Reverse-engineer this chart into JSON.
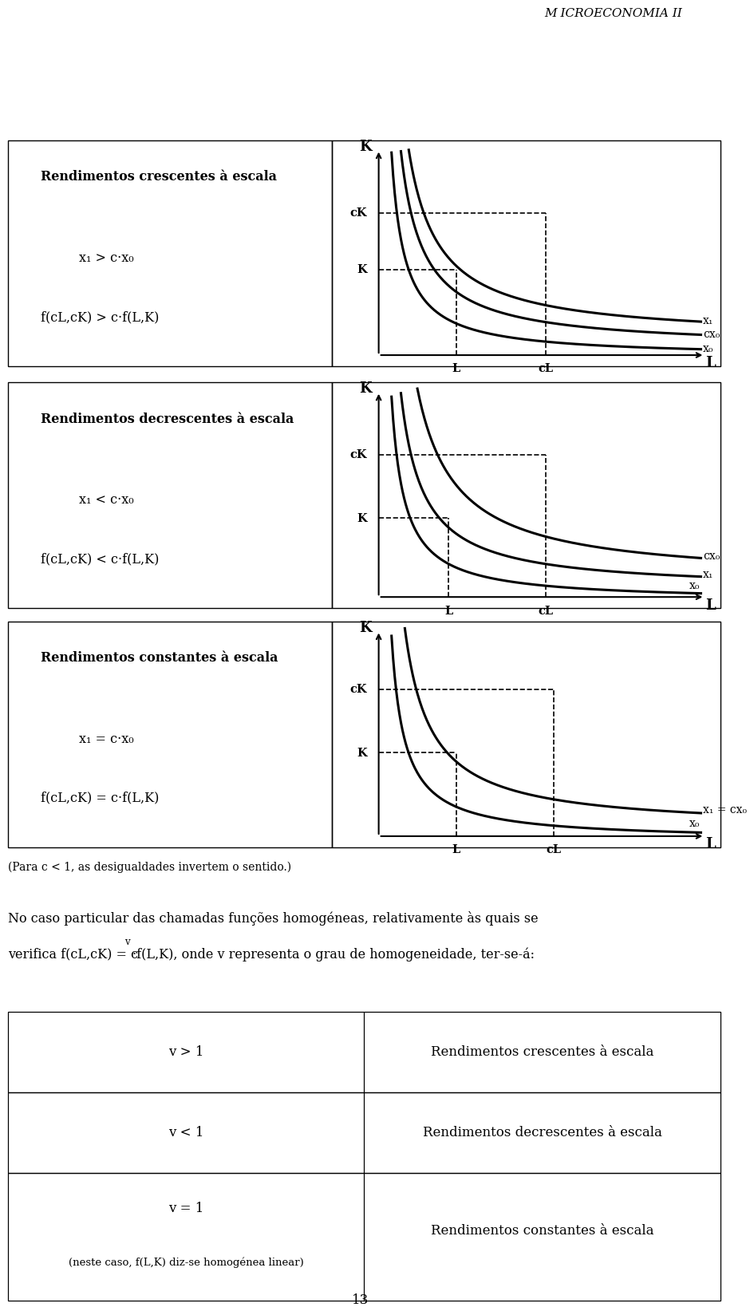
{
  "title": "M ICROECONOMIA II",
  "page_number": "13",
  "background_color": "#ffffff",
  "sections": [
    {
      "left_title": "Rendimentos crescentes à escala",
      "left_line1": "x₁ > c·x₀",
      "left_line2": "f(cL,cK) > c·f(L,K)",
      "curve_type": "increasing",
      "curve_labels": [
        "x₁",
        "cx₀",
        "x₀"
      ],
      "y_ticks": [
        "cK",
        "K"
      ],
      "x_ticks": [
        "L",
        "cL",
        "L"
      ]
    },
    {
      "left_title": "Rendimentos decrescentes à escala",
      "left_line1": "x₁ < c·x₀",
      "left_line2": "f(cL,cK) < c·f(L,K)",
      "curve_type": "decreasing",
      "curve_labels": [
        "cx₀",
        "x₁",
        "x₀"
      ],
      "y_ticks": [
        "cK",
        "K"
      ],
      "x_ticks": [
        "L",
        "cL",
        "L"
      ]
    },
    {
      "left_title": "Rendimentos constantes à escala",
      "left_line1": "x₁ = c·x₀",
      "left_line2": "f(cL,cK) = c·f(L,K)",
      "curve_type": "constant",
      "curve_labels": [
        "x₁ = cx₀",
        "x₀"
      ],
      "y_ticks": [
        "cK",
        "K"
      ],
      "x_ticks": [
        "L",
        "cL",
        "L"
      ]
    }
  ],
  "footer_note": "(Para c < 1, as desigualdades invertem o sentido.)",
  "body_text_line1": "No caso particular das chamadas funções homogéneas, relativamente às quais se",
  "body_text_line2a": "verifica f(cL,cK) = c",
  "body_text_line2b": "·f(L,K), onde v representa o grau de homogeneidade, ter-se-á:",
  "table_rows": [
    {
      "left": "v > 1",
      "right": "Rendimentos crescentes à escala"
    },
    {
      "left": "v < 1",
      "right": "Rendimentos decrescentes à escala"
    },
    {
      "left": "v = 1",
      "left_sub": "(neste caso, f(L,K) diz-se homogénea linear)",
      "right": "Rendimentos constantes à escala"
    }
  ]
}
